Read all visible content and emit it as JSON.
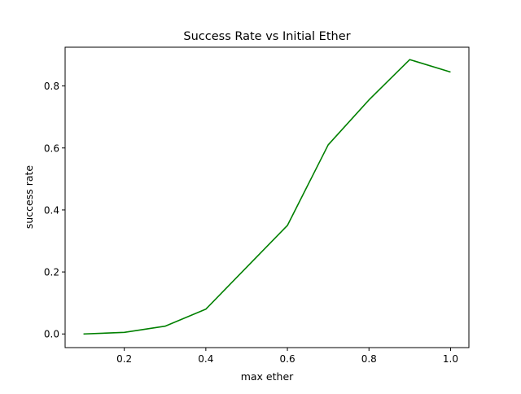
{
  "chart_data": {
    "type": "line",
    "title": "Success Rate vs Initial Ether",
    "xlabel": "max ether",
    "ylabel": "success rate",
    "xlim": [
      0.055,
      1.045
    ],
    "ylim": [
      -0.044,
      0.925
    ],
    "xticks": [
      0.2,
      0.4,
      0.6,
      0.8,
      1.0
    ],
    "xtick_labels": [
      "0.2",
      "0.4",
      "0.6",
      "0.8",
      "1.0"
    ],
    "yticks": [
      0.0,
      0.2,
      0.4,
      0.6,
      0.8
    ],
    "ytick_labels": [
      "0.0",
      "0.2",
      "0.4",
      "0.6",
      "0.8"
    ],
    "grid": false,
    "series": [
      {
        "color": "#008000",
        "x": [
          0.1,
          0.2,
          0.3,
          0.4,
          0.5,
          0.6,
          0.7,
          0.8,
          0.9,
          1.0
        ],
        "y": [
          0.0,
          0.005,
          0.025,
          0.08,
          0.215,
          0.35,
          0.61,
          0.755,
          0.885,
          0.845
        ]
      }
    ]
  }
}
